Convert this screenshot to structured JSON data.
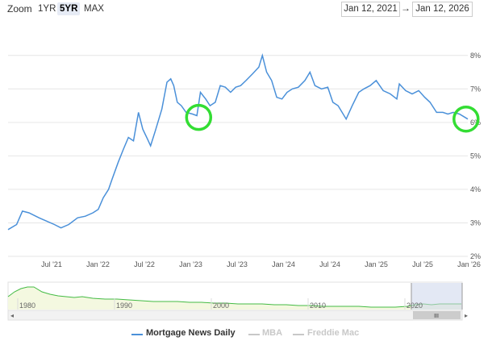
{
  "toolbar": {
    "zoom_label": "Zoom",
    "zoom_buttons": [
      {
        "label": "1YR",
        "active": false
      },
      {
        "label": "5YR",
        "active": true
      },
      {
        "label": "MAX",
        "active": false
      }
    ],
    "range_from": "Jan 12, 2021",
    "range_arrow": "→",
    "range_to": "Jan 12, 2026"
  },
  "colors": {
    "line": "#4a90d9",
    "highlight_circle": "#33dd33",
    "grid": "#e6e6e6",
    "navigator_fill": "#f4f8e0",
    "navigator_line": "#44bb44",
    "navigator_mask": "#ccd6eb",
    "muted_legend": "#c8c8c8"
  },
  "legend": [
    {
      "name": "Mortgage News Daily",
      "active": true
    },
    {
      "name": "MBA",
      "active": false
    },
    {
      "name": "Freddie Mac",
      "active": false
    }
  ],
  "navigator": {
    "labels": [
      "1980",
      "1990",
      "2000",
      "2010",
      "2020"
    ],
    "handle_glyph": "III"
  },
  "chart_data": {
    "type": "line",
    "title": "",
    "xlabel": "",
    "ylabel": "",
    "x_ticks": [
      "Jul '21",
      "Jan '22",
      "Jul '22",
      "Jan '23",
      "Jul '23",
      "Jan '24",
      "Jul '24",
      "Jan '25",
      "Jul '25",
      "Jan '26"
    ],
    "y_ticks": [
      "2%",
      "3%",
      "4%",
      "5%",
      "6%",
      "7%",
      "8%"
    ],
    "ylim": [
      2,
      8.5
    ],
    "xlim": [
      "2021-01-12",
      "2026-01-12"
    ],
    "grid": true,
    "legend_position": "bottom",
    "series": [
      {
        "name": "Mortgage News Daily",
        "x": [
          "2021-01-12",
          "2021-02-15",
          "2021-03-10",
          "2021-04-05",
          "2021-05-15",
          "2021-06-15",
          "2021-07-15",
          "2021-08-10",
          "2021-09-10",
          "2021-10-15",
          "2021-11-15",
          "2021-12-15",
          "2022-01-05",
          "2022-01-25",
          "2022-02-15",
          "2022-03-01",
          "2022-03-25",
          "2022-04-15",
          "2022-05-05",
          "2022-05-25",
          "2022-06-14",
          "2022-07-01",
          "2022-07-20",
          "2022-08-01",
          "2022-08-20",
          "2022-09-15",
          "2022-10-05",
          "2022-10-20",
          "2022-11-01",
          "2022-11-15",
          "2022-12-01",
          "2022-12-20",
          "2023-01-15",
          "2023-02-01",
          "2023-02-15",
          "2023-03-08",
          "2023-03-25",
          "2023-04-15",
          "2023-05-05",
          "2023-05-25",
          "2023-06-15",
          "2023-07-05",
          "2023-07-25",
          "2023-08-15",
          "2023-09-10",
          "2023-10-05",
          "2023-10-19",
          "2023-11-05",
          "2023-11-25",
          "2023-12-15",
          "2024-01-05",
          "2024-01-25",
          "2024-02-15",
          "2024-03-10",
          "2024-04-05",
          "2024-04-25",
          "2024-05-15",
          "2024-06-10",
          "2024-07-05",
          "2024-07-25",
          "2024-08-15",
          "2024-09-16",
          "2024-10-10",
          "2024-11-05",
          "2024-11-25",
          "2024-12-20",
          "2025-01-13",
          "2025-02-10",
          "2025-03-10",
          "2025-04-05",
          "2025-04-15",
          "2025-05-10",
          "2025-06-05",
          "2025-07-01",
          "2025-07-25",
          "2025-08-15",
          "2025-09-10",
          "2025-10-05",
          "2025-10-25",
          "2025-11-15",
          "2025-12-10",
          "2026-01-12"
        ],
        "y": [
          2.8,
          2.95,
          3.35,
          3.3,
          3.15,
          3.05,
          2.95,
          2.85,
          2.95,
          3.15,
          3.2,
          3.3,
          3.4,
          3.75,
          4.0,
          4.3,
          4.8,
          5.2,
          5.55,
          5.45,
          6.3,
          5.8,
          5.5,
          5.3,
          5.75,
          6.4,
          7.2,
          7.3,
          7.1,
          6.6,
          6.5,
          6.3,
          6.25,
          6.2,
          6.9,
          6.7,
          6.5,
          6.6,
          7.1,
          7.05,
          6.9,
          7.05,
          7.1,
          7.25,
          7.45,
          7.65,
          8.0,
          7.5,
          7.25,
          6.75,
          6.7,
          6.9,
          7.0,
          7.05,
          7.25,
          7.5,
          7.1,
          7.0,
          7.05,
          6.6,
          6.5,
          6.1,
          6.5,
          6.9,
          7.0,
          7.1,
          7.25,
          6.95,
          6.85,
          6.7,
          7.15,
          6.95,
          6.85,
          6.95,
          6.75,
          6.6,
          6.3,
          6.3,
          6.25,
          6.3,
          6.25,
          6.1
        ]
      }
    ],
    "annotations": [
      {
        "type": "circle",
        "x": "2023-02-08",
        "y": 6.15
      },
      {
        "type": "circle",
        "x": "2026-01-05",
        "y": 6.1
      }
    ]
  }
}
